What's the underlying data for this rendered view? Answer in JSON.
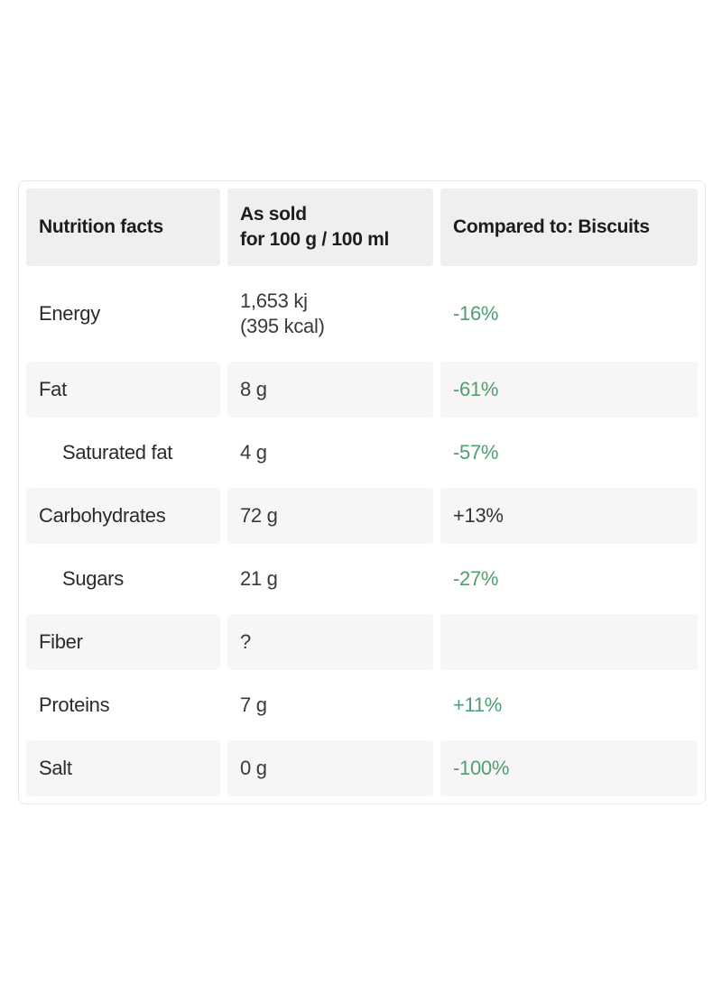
{
  "chart_data": {
    "type": "table",
    "title": "Nutrition facts",
    "columns": [
      "Nutrition facts",
      "As sold for 100 g / 100 ml",
      "Compared to: Biscuits"
    ],
    "rows": [
      [
        "Energy",
        "1,653 kj (395 kcal)",
        "-16%"
      ],
      [
        "Fat",
        "8 g",
        "-61%"
      ],
      [
        "Saturated fat",
        "4 g",
        "-57%"
      ],
      [
        "Carbohydrates",
        "72 g",
        "+13%"
      ],
      [
        "Sugars",
        "21 g",
        "-27%"
      ],
      [
        "Fiber",
        "?",
        ""
      ],
      [
        "Proteins",
        "7 g",
        "+11%"
      ],
      [
        "Salt",
        "0 g",
        "-100%"
      ]
    ],
    "layout_hints": {
      "striped_rows": true,
      "indented_rows": [
        "Saturated fat",
        "Sugars"
      ],
      "green_comparisons": [
        "-16%",
        "-61%",
        "-57%",
        "-27%",
        "+11%",
        "-100%"
      ],
      "neutral_comparisons": [
        "+13%"
      ]
    }
  },
  "table": {
    "header": {
      "col1": "Nutrition facts",
      "col2_line1": "As sold",
      "col2_line2": "for 100 g / 100 ml",
      "col3": "Compared to: Biscuits"
    },
    "rows": [
      {
        "label": "Energy",
        "value": "1,653 kj",
        "value2": "(395 kcal)",
        "comparison": "-16%",
        "comparison_color": "green"
      },
      {
        "label": "Fat",
        "value": "8 g",
        "comparison": "-61%",
        "comparison_color": "green"
      },
      {
        "label": "Saturated fat",
        "value": "4 g",
        "comparison": "-57%",
        "comparison_color": "green"
      },
      {
        "label": "Carbohydrates",
        "value": "72 g",
        "comparison": "+13%",
        "comparison_color": "neutral"
      },
      {
        "label": "Sugars",
        "value": "21 g",
        "comparison": "-27%",
        "comparison_color": "green"
      },
      {
        "label": "Fiber",
        "value": "?",
        "comparison": "",
        "comparison_color": "neutral"
      },
      {
        "label": "Proteins",
        "value": "7 g",
        "comparison": "+11%",
        "comparison_color": "green"
      },
      {
        "label": "Salt",
        "value": "0 g",
        "comparison": "-100%",
        "comparison_color": "green"
      }
    ],
    "colors": {
      "green": "#4f9e72",
      "neutral": "#333333",
      "header_bg": "#f1eeee",
      "stripe_bg": "#f7f5f5",
      "border": "#e9e6e6"
    }
  }
}
